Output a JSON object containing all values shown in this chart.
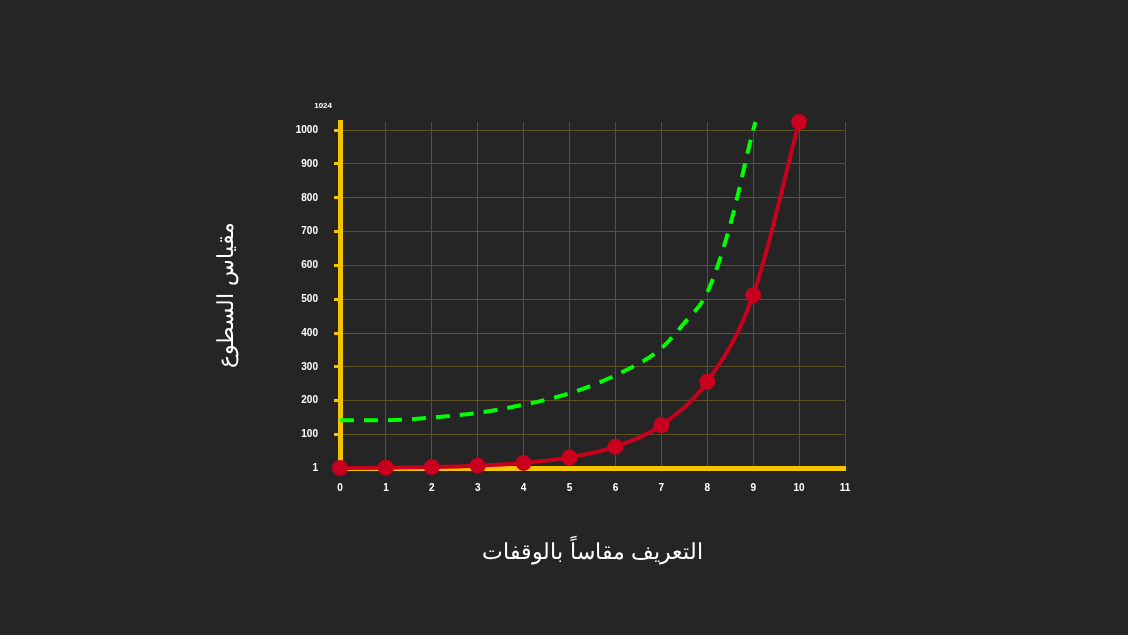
{
  "chart_data": {
    "type": "line",
    "xlabel": "التعريف مقاساً بالوقفات",
    "ylabel": "مقياس السطوع",
    "annotations": [
      "1024"
    ],
    "xlim": [
      0,
      11
    ],
    "xticks": [
      0,
      1,
      2,
      3,
      4,
      5,
      6,
      7,
      8,
      9,
      10,
      11
    ],
    "ylim": [
      1,
      1024
    ],
    "yticks": [
      1,
      100,
      200,
      300,
      400,
      500,
      600,
      700,
      800,
      900,
      1000
    ],
    "grid": true,
    "legend": false,
    "series": [
      {
        "color": "#00ff00",
        "line_style": "dashed",
        "marker": "none",
        "x": [
          0,
          1,
          2,
          3,
          4,
          5,
          6,
          7,
          7.5,
          8,
          8.5,
          9,
          9.05
        ],
        "values": [
          142,
          142,
          150,
          164,
          188,
          222,
          275,
          355,
          430,
          520,
          720,
          1000,
          1024
        ]
      },
      {
        "color": "#c8001e",
        "line_style": "solid",
        "marker": "circle",
        "x": [
          0,
          1,
          2,
          3,
          4,
          5,
          6,
          7,
          8,
          9,
          10
        ],
        "values": [
          1,
          2,
          4,
          8,
          16,
          32,
          64,
          128,
          256,
          512,
          1024
        ]
      }
    ]
  }
}
